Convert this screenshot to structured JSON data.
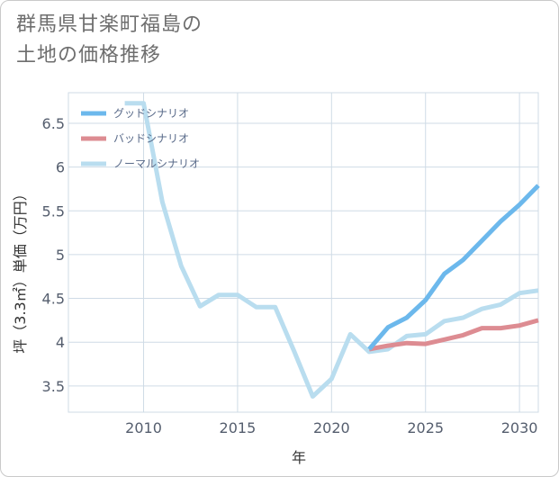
{
  "title": "群馬県甘楽町福島の\n土地の価格推移",
  "chart_data": {
    "type": "line",
    "xlabel": "年",
    "ylabel": "坪（3.3㎡）単価（万円）",
    "xlim": [
      2006,
      2031
    ],
    "ylim": [
      3.2,
      6.85
    ],
    "xticks": [
      2010,
      2015,
      2020,
      2025,
      2030
    ],
    "yticks": [
      3.5,
      4,
      4.5,
      5,
      5.5,
      6,
      6.5
    ],
    "grid": true,
    "legend_position": "top-left",
    "series": [
      {
        "name": "グッドシナリオ",
        "color": "#6cb8ec",
        "x": [
          2022,
          2023,
          2024,
          2025,
          2026,
          2027,
          2028,
          2029,
          2030,
          2031
        ],
        "y": [
          3.92,
          4.17,
          4.28,
          4.48,
          4.78,
          4.94,
          5.16,
          5.38,
          5.57,
          5.79
        ]
      },
      {
        "name": "バッドシナリオ",
        "color": "#dd8c92",
        "x": [
          2022,
          2023,
          2024,
          2025,
          2026,
          2027,
          2028,
          2029,
          2030,
          2031
        ],
        "y": [
          3.92,
          3.96,
          3.99,
          3.98,
          4.03,
          4.08,
          4.16,
          4.16,
          4.19,
          4.25
        ]
      },
      {
        "name": "ノーマルシナリオ",
        "color": "#b9ddef",
        "x": [
          2009,
          2010,
          2011,
          2012,
          2013,
          2014,
          2015,
          2016,
          2017,
          2018,
          2019,
          2020,
          2021,
          2022,
          2023,
          2024,
          2025,
          2026,
          2027,
          2028,
          2029,
          2030,
          2031
        ],
        "y": [
          6.73,
          6.73,
          5.6,
          4.87,
          4.41,
          4.54,
          4.54,
          4.4,
          4.4,
          3.9,
          3.38,
          3.58,
          4.09,
          3.89,
          3.92,
          4.07,
          4.09,
          4.24,
          4.28,
          4.38,
          4.43,
          4.56,
          4.59
        ]
      }
    ]
  }
}
